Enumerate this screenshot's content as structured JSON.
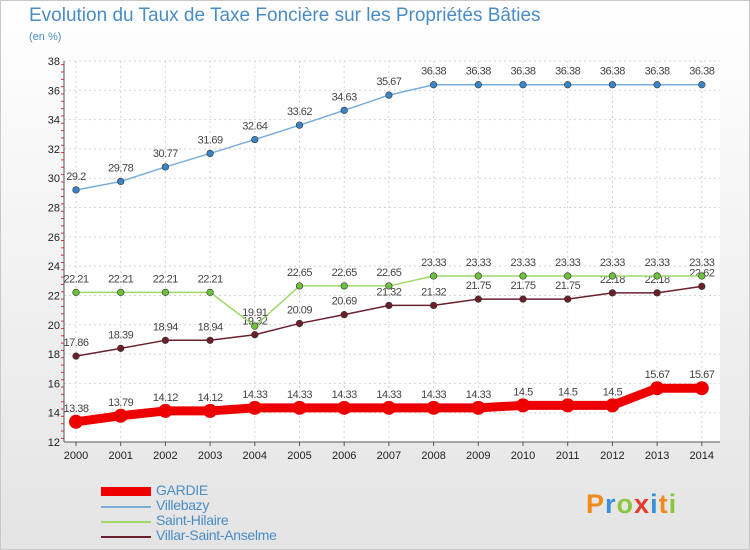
{
  "title": "Evolution du Taux de Taxe Foncière sur les Propriétés Bâties",
  "unit": "(en %)",
  "brand": "Proxiti",
  "brand_colors": [
    "#f08a1c",
    "#3a8fd8",
    "#8cc63e",
    "#e8392a",
    "#3a8fd8",
    "#f08a1c",
    "#8cc63e"
  ],
  "chart_data": {
    "type": "line",
    "title": "Evolution du Taux de Taxe Foncière sur les Propriétés Bâties",
    "ylabel": "(en %)",
    "x": [
      "2000",
      "2001",
      "2002",
      "2003",
      "2004",
      "2005",
      "2006",
      "2007",
      "2008",
      "2009",
      "2010",
      "2011",
      "2012",
      "2013",
      "2014"
    ],
    "ylim": [
      12,
      38
    ],
    "yticks": [
      "12",
      "14",
      "16",
      "18",
      "20",
      "22",
      "24",
      "26",
      "28",
      "30",
      "32",
      "34",
      "36",
      "38"
    ],
    "grid": true,
    "legend_position": "bottom-left",
    "series": [
      {
        "name": "GARDIE",
        "color": "#ee0000",
        "values": [
          13.38,
          13.79,
          14.12,
          14.12,
          14.33,
          14.33,
          14.33,
          14.33,
          14.33,
          14.33,
          14.5,
          14.5,
          14.5,
          15.67,
          15.67
        ],
        "labels": [
          "13.38",
          "13.79",
          "14.12",
          "14.12",
          "14.33",
          "14.33",
          "14.33",
          "14.33",
          "14.33",
          "14.33",
          "14.5",
          "14.5",
          "14.5",
          "15.67",
          "15.67"
        ]
      },
      {
        "name": "Villebazy",
        "color": "#7aaedb",
        "values": [
          29.2,
          29.78,
          30.77,
          31.69,
          32.64,
          33.62,
          34.63,
          35.67,
          36.38,
          36.38,
          36.38,
          36.38,
          36.38,
          36.38,
          36.38
        ],
        "labels": [
          "29.2",
          "29.78",
          "30.77",
          "31.69",
          "32.64",
          "33.62",
          "34.63",
          "35.67",
          "36.38",
          "36.38",
          "36.38",
          "36.38",
          "36.38",
          "36.38",
          "36.38"
        ]
      },
      {
        "name": "Saint-Hilaire",
        "color": "#9fd86a",
        "values": [
          22.21,
          22.21,
          22.21,
          22.21,
          19.91,
          22.65,
          22.65,
          22.65,
          23.33,
          23.33,
          23.33,
          23.33,
          23.33,
          23.33,
          23.33
        ],
        "labels": [
          "22.21",
          "22.21",
          "22.21",
          "22.21",
          "19.91",
          "22.65",
          "22.65",
          "22.65",
          "23.33",
          "23.33",
          "23.33",
          "23.33",
          "23.33",
          "23.33",
          "23.33"
        ]
      },
      {
        "name": "Villar-Saint-Anselme",
        "color": "#6b2030",
        "values": [
          17.86,
          18.39,
          18.94,
          18.94,
          19.32,
          20.09,
          20.69,
          21.32,
          21.32,
          21.75,
          21.75,
          21.75,
          22.18,
          22.18,
          22.62
        ],
        "labels": [
          "17.86",
          "18.39",
          "18.94",
          "18.94",
          "19.32",
          "20.09",
          "20.69",
          "21.32",
          "21.32",
          "21.75",
          "21.75",
          "21.75",
          "22.18",
          "22.18",
          "22.62"
        ]
      }
    ]
  }
}
